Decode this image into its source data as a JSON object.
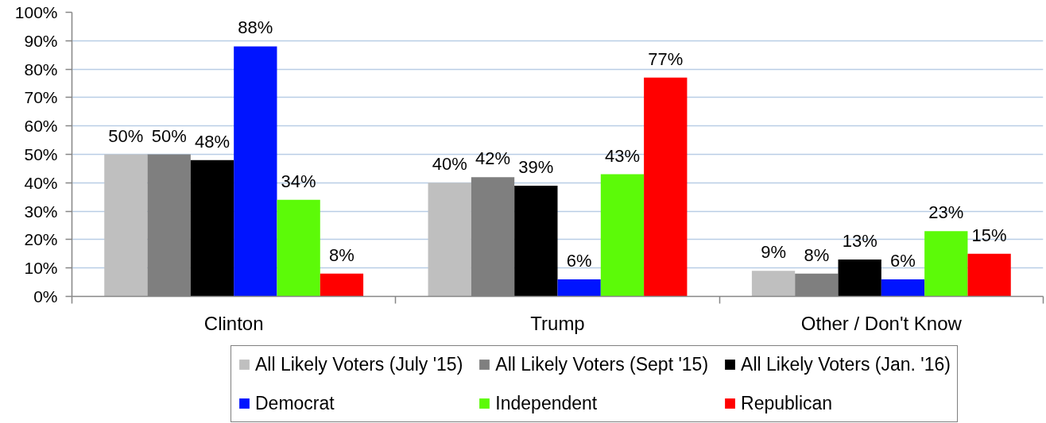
{
  "chart_data": {
    "type": "bar",
    "categories": [
      "Clinton",
      "Trump",
      "Other / Don't Know"
    ],
    "series": [
      {
        "name": "All Likely Voters (July '15)",
        "color": "#bfbfbf",
        "values": [
          50,
          40,
          9
        ],
        "value_labels": [
          "50%",
          "40%",
          "9%"
        ]
      },
      {
        "name": "All Likely Voters (Sept '15)",
        "color": "#7f7f7f",
        "values": [
          50,
          42,
          8
        ],
        "value_labels": [
          "50%",
          "42%",
          "8%"
        ]
      },
      {
        "name": "All Likely Voters (Jan. '16)",
        "color": "#000000",
        "values": [
          48,
          39,
          13
        ],
        "value_labels": [
          "48%",
          "39%",
          "13%"
        ]
      },
      {
        "name": "Democrat",
        "color": "#0014ff",
        "values": [
          88,
          6,
          6
        ],
        "value_labels": [
          "88%",
          "6%",
          "6%"
        ]
      },
      {
        "name": "Independent",
        "color": "#5cfa08",
        "values": [
          34,
          43,
          23
        ],
        "value_labels": [
          "34%",
          "43%",
          "23%"
        ]
      },
      {
        "name": "Republican",
        "color": "#ff0000",
        "values": [
          8,
          77,
          15
        ],
        "value_labels": [
          "8%",
          "77%",
          "15%"
        ]
      }
    ],
    "ylim": [
      0,
      100
    ],
    "yticks": [
      {
        "value": 0,
        "label": "0%"
      },
      {
        "value": 10,
        "label": "10%"
      },
      {
        "value": 20,
        "label": "20%"
      },
      {
        "value": 30,
        "label": "30%"
      },
      {
        "value": 40,
        "label": "40%"
      },
      {
        "value": 50,
        "label": "50%"
      },
      {
        "value": 60,
        "label": "60%"
      },
      {
        "value": 70,
        "label": "70%"
      },
      {
        "value": 80,
        "label": "80%"
      },
      {
        "value": 90,
        "label": "90%"
      },
      {
        "value": 100,
        "label": "100%"
      }
    ],
    "grid": "y",
    "legend": "bottom"
  }
}
